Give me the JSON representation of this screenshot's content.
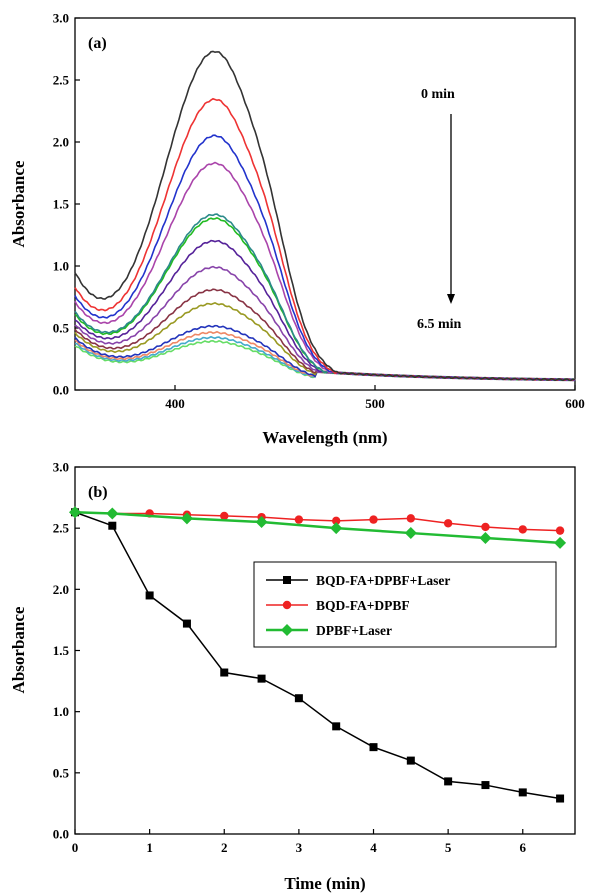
{
  "chart_data": [
    {
      "type": "line",
      "panel_label": "(a)",
      "xlabel": "Wavelength (nm)",
      "ylabel": "Absorbance",
      "xlim": [
        350,
        600
      ],
      "ylim": [
        0.0,
        3.0
      ],
      "x_ticks": [
        400,
        500,
        600
      ],
      "y_ticks": [
        0.0,
        0.5,
        1.0,
        1.5,
        2.0,
        2.5,
        3.0
      ],
      "x_tick_labels": [
        "400",
        "500",
        "600"
      ],
      "y_tick_labels": [
        "0.0",
        "0.5",
        "1.0",
        "1.5",
        "2.0",
        "2.5",
        "3.0"
      ],
      "annotations": {
        "start": "0 min",
        "end": "6.5 min"
      },
      "peak_wavelength": 420,
      "series": [
        {
          "color": "#333333",
          "peak": 2.62,
          "start": 0.95
        },
        {
          "color": "#ee3333",
          "peak": 2.24,
          "start": 0.83
        },
        {
          "color": "#2233cc",
          "peak": 1.95,
          "start": 0.76
        },
        {
          "color": "#aa44aa",
          "peak": 1.73,
          "start": 0.71
        },
        {
          "color": "#2b8a8a",
          "peak": 1.32,
          "start": 0.63
        },
        {
          "color": "#22bb22",
          "peak": 1.29,
          "start": 0.61
        },
        {
          "color": "#552299",
          "peak": 1.11,
          "start": 0.57
        },
        {
          "color": "#8844aa",
          "peak": 0.9,
          "start": 0.53
        },
        {
          "color": "#883344",
          "peak": 0.72,
          "start": 0.49
        },
        {
          "color": "#999922",
          "peak": 0.61,
          "start": 0.46
        },
        {
          "color": "#2233bb",
          "peak": 0.43,
          "start": 0.42
        },
        {
          "color": "#ee8866",
          "peak": 0.38,
          "start": 0.4
        },
        {
          "color": "#44aacc",
          "peak": 0.34,
          "start": 0.38
        },
        {
          "color": "#66dd66",
          "peak": 0.31,
          "start": 0.36
        }
      ]
    },
    {
      "type": "line",
      "panel_label": "(b)",
      "xlabel": "Time (min)",
      "ylabel": "Absorbance",
      "xlim": [
        0,
        6.7
      ],
      "ylim": [
        0.0,
        3.0
      ],
      "x_ticks": [
        0,
        1,
        2,
        3,
        4,
        5,
        6
      ],
      "y_ticks": [
        0.0,
        0.5,
        1.0,
        1.5,
        2.0,
        2.5,
        3.0
      ],
      "x_tick_labels": [
        "0",
        "1",
        "2",
        "3",
        "4",
        "5",
        "6"
      ],
      "y_tick_labels": [
        "0.0",
        "0.5",
        "1.0",
        "1.5",
        "2.0",
        "2.5",
        "3.0"
      ],
      "legend_position": "center-right",
      "series": [
        {
          "name": "BQD-FA+DPBF+Laser",
          "color": "#000000",
          "marker": "square",
          "x": [
            0,
            0.5,
            1,
            1.5,
            2,
            2.5,
            3,
            3.5,
            4,
            4.5,
            5,
            5.5,
            6,
            6.5
          ],
          "y": [
            2.63,
            2.52,
            1.95,
            1.72,
            1.32,
            1.27,
            1.11,
            0.88,
            0.71,
            0.6,
            0.43,
            0.4,
            0.34,
            0.29
          ]
        },
        {
          "name": "BQD-FA+DPBF",
          "color": "#ee2222",
          "marker": "circle",
          "x": [
            0,
            0.5,
            1,
            1.5,
            2,
            2.5,
            3,
            3.5,
            4,
            4.5,
            5,
            5.5,
            6,
            6.5
          ],
          "y": [
            2.63,
            2.62,
            2.62,
            2.61,
            2.6,
            2.59,
            2.57,
            2.56,
            2.57,
            2.58,
            2.54,
            2.51,
            2.49,
            2.48
          ]
        },
        {
          "name": "DPBF+Laser",
          "color": "#22bb33",
          "marker": "diamond",
          "x": [
            0,
            0.5,
            1.5,
            2.5,
            3.5,
            4.5,
            5.5,
            6.5
          ],
          "y": [
            2.63,
            2.62,
            2.58,
            2.55,
            2.5,
            2.46,
            2.42,
            2.38
          ]
        }
      ]
    }
  ]
}
